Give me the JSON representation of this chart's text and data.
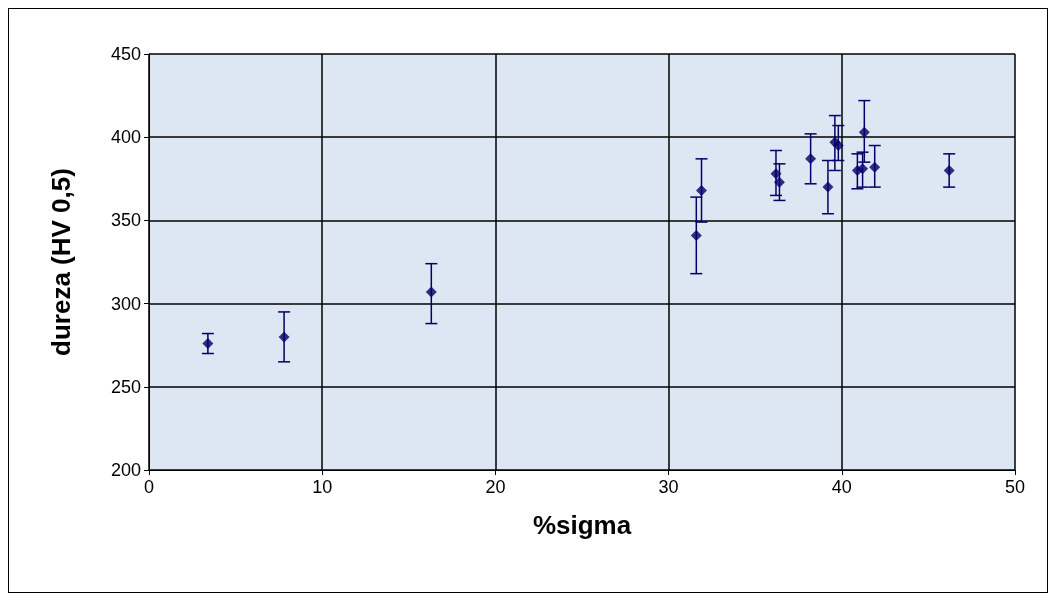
{
  "chart_data": {
    "type": "scatter",
    "xlabel": "%sigma",
    "ylabel": "dureza (HV 0,5)",
    "x": [
      3.4,
      7.8,
      16.3,
      31.6,
      31.9,
      36.2,
      36.4,
      38.2,
      39.2,
      39.6,
      39.8,
      40.9,
      41.2,
      41.3,
      41.9,
      46.2
    ],
    "series": [
      {
        "color": "#000066",
        "values": [
          276,
          280,
          307,
          341,
          368,
          378,
          373,
          387,
          370,
          397,
          395,
          380,
          381,
          403,
          382,
          380
        ],
        "errors": [
          [
            270,
            282
          ],
          [
            265,
            295
          ],
          [
            288,
            324
          ],
          [
            318,
            364
          ],
          [
            349,
            387
          ],
          [
            365,
            392
          ],
          [
            362,
            384
          ],
          [
            372,
            402
          ],
          [
            354,
            386
          ],
          [
            380,
            413
          ],
          [
            386,
            407
          ],
          [
            369,
            390
          ],
          [
            370,
            391
          ],
          [
            385,
            422
          ],
          [
            370,
            395
          ],
          [
            370,
            390
          ]
        ]
      }
    ],
    "xlim": [
      0,
      50
    ],
    "xticks": [
      0,
      10,
      20,
      30,
      40,
      50
    ],
    "ylim": [
      200,
      450
    ],
    "yticks": [
      200,
      250,
      300,
      350,
      400,
      450
    ],
    "grid": true,
    "marker": "diamond"
  }
}
